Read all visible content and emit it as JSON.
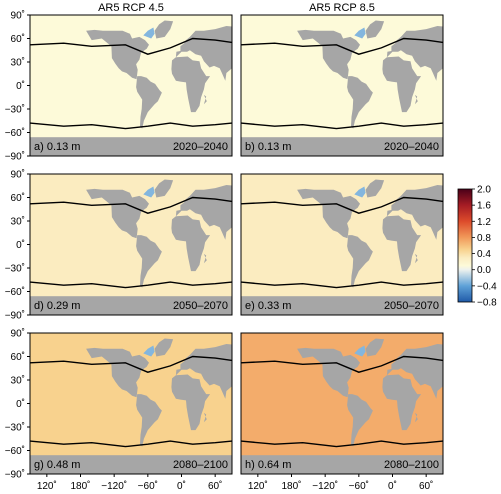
{
  "chart_data": [
    {
      "type": "heatmap",
      "panel": "a",
      "column_title": "AR5 RCP 4.5",
      "label": "a) 0.13 m",
      "period": "2020–2040",
      "global_mean_m": 0.13,
      "scenario": "RCP 4.5",
      "background_level": 0.1,
      "anomalies": []
    },
    {
      "type": "heatmap",
      "panel": "b",
      "column_title": "AR5 RCP 8.5",
      "label": "b) 0.13 m",
      "period": "2020–2040",
      "global_mean_m": 0.13,
      "scenario": "RCP 8.5",
      "background_level": 0.1,
      "anomalies": []
    },
    {
      "type": "heatmap",
      "panel": "d",
      "label": "d) 0.29 m",
      "period": "2050–2070",
      "global_mean_m": 0.29,
      "scenario": "RCP 4.5",
      "background_level": 0.3,
      "anomalies": []
    },
    {
      "type": "heatmap",
      "panel": "e",
      "label": "e) 0.33 m",
      "period": "2050–2070",
      "global_mean_m": 0.33,
      "scenario": "RCP 8.5",
      "background_level": 0.3,
      "anomalies": []
    },
    {
      "type": "heatmap",
      "panel": "g",
      "label": "g) 0.48 m",
      "period": "2080–2100",
      "global_mean_m": 0.48,
      "scenario": "RCP 4.5",
      "background_level": 0.5,
      "anomalies": []
    },
    {
      "type": "heatmap",
      "panel": "h",
      "label": "h) 0.64 m",
      "period": "2080–2100",
      "global_mean_m": 0.64,
      "scenario": "RCP 8.5",
      "background_level": 0.7,
      "anomalies": []
    }
  ],
  "axes": {
    "y_ticks": [
      "90˚",
      "60˚",
      "30˚",
      "0˚",
      "−30˚",
      "−60˚",
      "−90˚"
    ],
    "y_values": [
      90,
      60,
      30,
      0,
      -30,
      -60,
      -90
    ],
    "x_ticks": [
      "120˚",
      "180˚",
      "−120˚",
      "−60˚",
      "0˚",
      "60˚"
    ],
    "x_values": [
      120,
      180,
      240,
      300,
      360,
      420
    ],
    "lon_range": [
      90,
      450
    ],
    "lat_range": [
      -90,
      90
    ]
  },
  "colorbar": {
    "ticks": [
      "2.0",
      "1.6",
      "1.2",
      "0.8",
      "0.4",
      "0.0",
      "−0.4",
      "−0.8"
    ],
    "tick_values": [
      2.0,
      1.6,
      1.2,
      0.8,
      0.4,
      0.0,
      -0.4,
      -0.8
    ],
    "range": [
      -0.8,
      2.0
    ],
    "stops": [
      {
        "v": -0.8,
        "c": "#1f5aa8"
      },
      {
        "v": -0.4,
        "c": "#5fa2d8"
      },
      {
        "v": 0.0,
        "c": "#eef2ee"
      },
      {
        "v": 0.1,
        "c": "#fdfad9"
      },
      {
        "v": 0.3,
        "c": "#fbecc0"
      },
      {
        "v": 0.5,
        "c": "#f8d28e"
      },
      {
        "v": 0.8,
        "c": "#f1995a"
      },
      {
        "v": 1.2,
        "c": "#dd4b2b"
      },
      {
        "v": 1.6,
        "c": "#a51c24"
      },
      {
        "v": 2.0,
        "c": "#4a0018"
      }
    ]
  },
  "colors": {
    "land": "#a6a6a6",
    "contour": "#000000"
  }
}
